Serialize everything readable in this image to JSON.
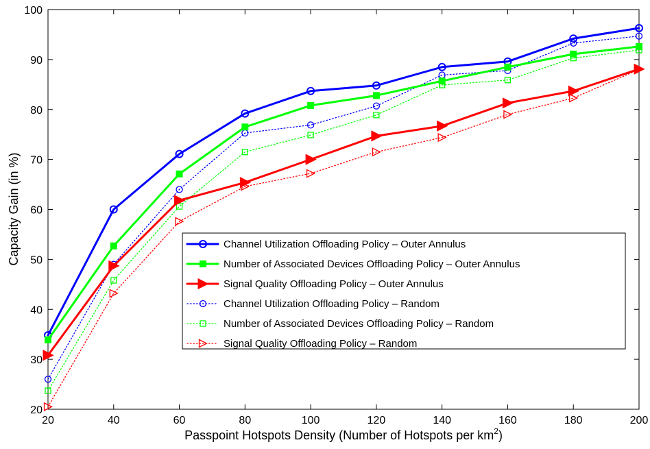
{
  "chart_data": {
    "type": "line",
    "title": "",
    "xlabel": "Passpoint Hotspots Density (Number of Hotspots per km",
    "xlabel_sup": "2",
    "xlabel_end": ")",
    "ylabel": "Capacity Gain (in %)",
    "xlim": [
      20,
      200
    ],
    "ylim": [
      20,
      100
    ],
    "x": [
      20,
      40,
      60,
      80,
      100,
      120,
      140,
      160,
      180,
      200
    ],
    "x_ticks": [
      "20",
      "40",
      "60",
      "80",
      "100",
      "120",
      "140",
      "160",
      "180",
      "200"
    ],
    "y_ticks": [
      "20",
      "30",
      "40",
      "50",
      "60",
      "70",
      "80",
      "90",
      "100"
    ],
    "grid": false,
    "legend_position": "center-right",
    "series": [
      {
        "name": "Channel Utilization Offloading Policy – Outer Annulus",
        "color": "#0000ff",
        "line": "solid",
        "marker": "circle",
        "filled": false,
        "values": [
          34.8,
          60.0,
          71.1,
          79.2,
          83.7,
          84.8,
          88.5,
          89.6,
          94.2,
          96.3
        ]
      },
      {
        "name": "Number of Associated Devices Offloading Policy – Outer Annulus",
        "color": "#00ff00",
        "line": "solid",
        "marker": "square",
        "filled": true,
        "values": [
          33.9,
          52.7,
          67.1,
          76.5,
          80.8,
          82.8,
          85.7,
          88.5,
          91.1,
          92.6
        ]
      },
      {
        "name": "Signal Quality Offloading Policy – Outer Annulus",
        "color": "#ff0000",
        "line": "solid",
        "marker": "triangle-right",
        "filled": true,
        "values": [
          30.8,
          48.7,
          61.8,
          65.4,
          70.0,
          74.7,
          76.7,
          81.3,
          83.7,
          88.1
        ]
      },
      {
        "name": "Channel Utilization Offloading Policy – Random",
        "color": "#0000ff",
        "line": "dotted",
        "marker": "circle",
        "filled": false,
        "values": [
          26.0,
          49.0,
          64.0,
          75.3,
          76.9,
          80.7,
          86.9,
          87.8,
          93.3,
          94.7
        ]
      },
      {
        "name": "Number of Associated Devices Offloading Policy – Random",
        "color": "#00ff00",
        "line": "dotted",
        "marker": "square",
        "filled": false,
        "values": [
          23.7,
          45.8,
          60.6,
          71.5,
          74.9,
          78.9,
          84.9,
          85.9,
          90.3,
          91.9
        ]
      },
      {
        "name": "Signal Quality Offloading Policy – Random",
        "color": "#ff0000",
        "line": "dotted",
        "marker": "triangle-right",
        "filled": false,
        "values": [
          20.5,
          43.2,
          57.6,
          64.6,
          67.2,
          71.5,
          74.4,
          79.0,
          82.3,
          88.0
        ]
      }
    ]
  }
}
